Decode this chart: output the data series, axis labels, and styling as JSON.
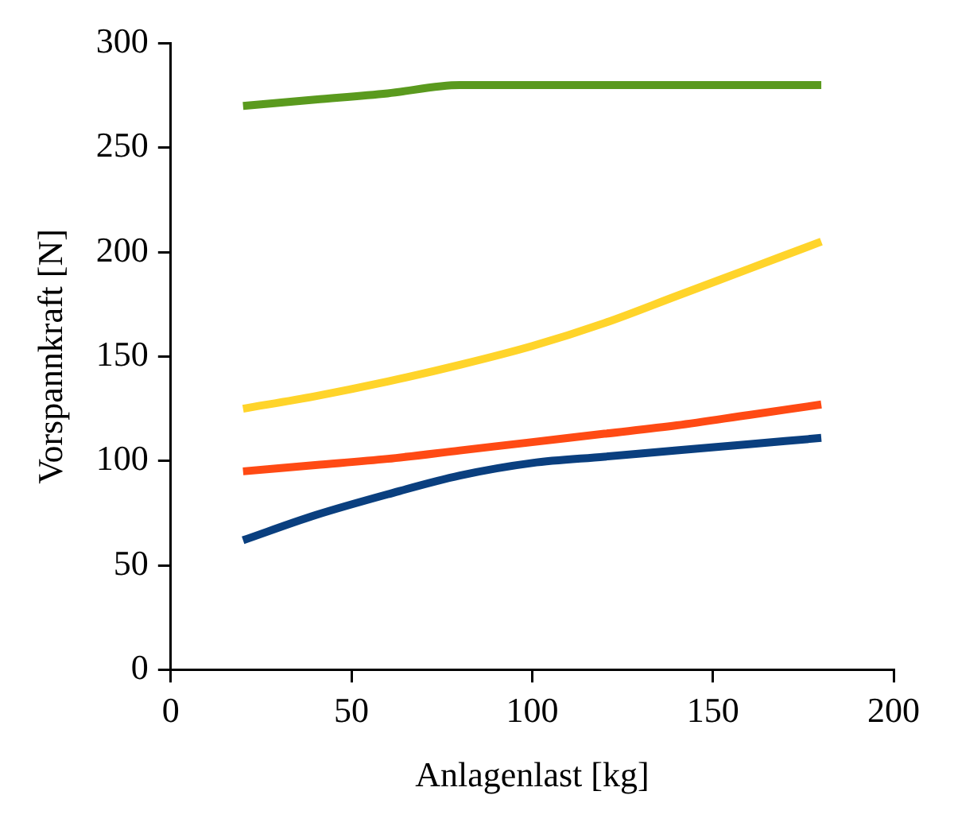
{
  "chart_data": {
    "type": "line",
    "xlabel": "Anlagenlast [kg]",
    "ylabel": "Vorspannkraft [N]",
    "x": [
      20,
      40,
      60,
      80,
      100,
      120,
      140,
      160,
      180
    ],
    "series": [
      {
        "color": "#5a9a1e",
        "values": [
          270,
          273,
          276,
          280,
          280,
          280,
          280,
          280,
          280
        ]
      },
      {
        "color": "#ffd42a",
        "values": [
          125,
          131,
          138,
          146,
          155,
          166,
          179,
          192,
          205
        ]
      },
      {
        "color": "#ff4a14",
        "values": [
          95,
          98,
          101,
          105,
          109,
          113,
          117,
          122,
          127
        ]
      },
      {
        "color": "#0a3f7f",
        "values": [
          62,
          74,
          84,
          93,
          99,
          102,
          105,
          108,
          111
        ]
      }
    ],
    "xlim": [
      0,
      200
    ],
    "xticks": [
      0,
      50,
      100,
      150,
      200
    ],
    "ylim": [
      0,
      300
    ],
    "yticks": [
      0,
      50,
      100,
      150,
      200,
      250,
      300
    ],
    "grid": false,
    "legend": false,
    "marker": "none",
    "line_style": "solid"
  }
}
